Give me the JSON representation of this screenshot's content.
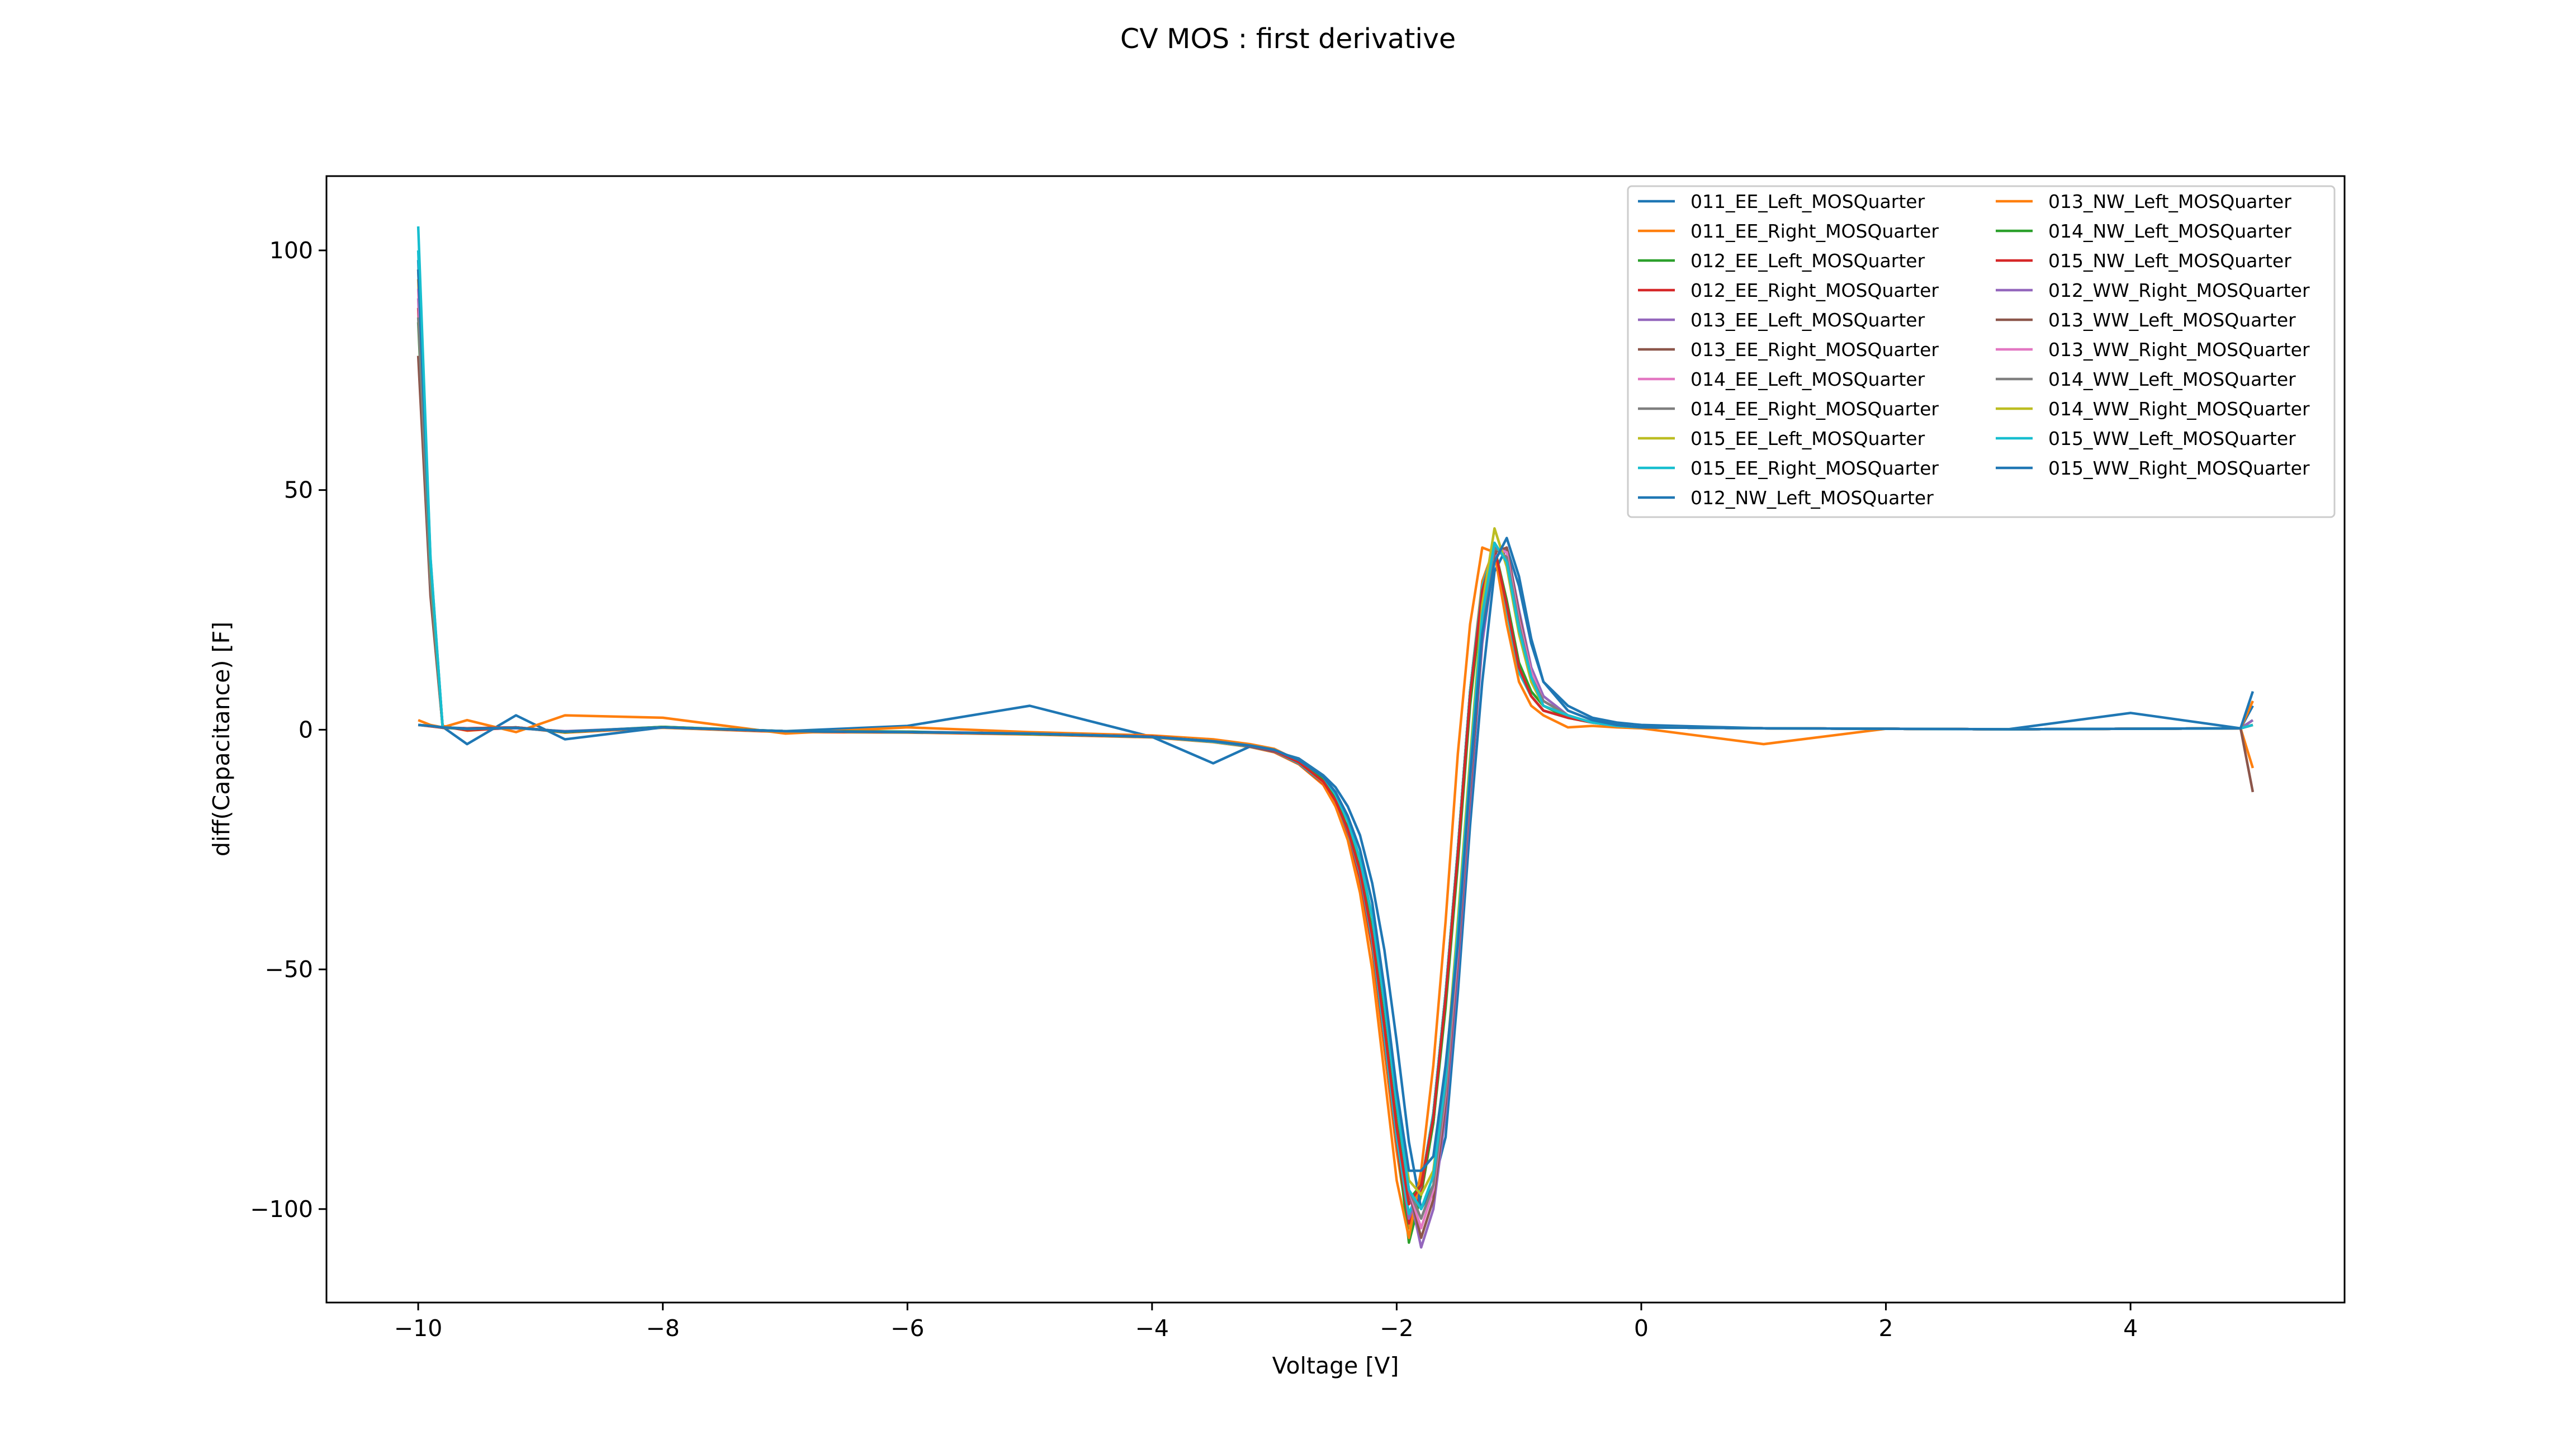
{
  "chart_data": {
    "type": "line",
    "title": "CV MOS : first derivative",
    "xlabel": "Voltage [V]",
    "ylabel": "diff(Capacitance) [F]",
    "xlim": [
      -10.75,
      5.75
    ],
    "ylim": [
      -119.5,
      115.5
    ],
    "xticks": [
      -10,
      -8,
      -6,
      -4,
      -2,
      0,
      2,
      4
    ],
    "xtick_labels": [
      "−10",
      "−8",
      "−6",
      "−4",
      "−2",
      "0",
      "2",
      "4"
    ],
    "yticks": [
      100,
      50,
      0,
      -50,
      -100
    ],
    "ytick_labels": [
      "100",
      "50",
      "0",
      "−50",
      "−100"
    ],
    "grid": false,
    "legend_position": "top-right",
    "legend_columns": 2,
    "colors": [
      "#1f77b4",
      "#ff7f0e",
      "#2ca02c",
      "#d62728",
      "#9467bd",
      "#8c564b",
      "#e377c2",
      "#7f7f7f",
      "#bcbd22",
      "#17becf"
    ],
    "x": [
      -10.0,
      -9.9,
      -9.8,
      -9.6,
      -9.2,
      -8.8,
      -8.0,
      -7.0,
      -6.0,
      -5.0,
      -4.0,
      -3.5,
      -3.2,
      -3.0,
      -2.8,
      -2.6,
      -2.5,
      -2.4,
      -2.3,
      -2.2,
      -2.1,
      -2.0,
      -1.9,
      -1.8,
      -1.7,
      -1.6,
      -1.5,
      -1.4,
      -1.3,
      -1.2,
      -1.1,
      -1.0,
      -0.9,
      -0.8,
      -0.6,
      -0.4,
      -0.2,
      0.0,
      1.0,
      2.0,
      3.0,
      4.0,
      4.9,
      5.0
    ],
    "series": [
      {
        "name": "011_EE_Left_MOSQuarter",
        "values": [
          98,
          35,
          0.5,
          0.3,
          0.5,
          -0.4,
          0.6,
          -0.3,
          -0.5,
          -0.8,
          -1.5,
          -2.5,
          -3.5,
          -4.5,
          -7,
          -11,
          -15,
          -21,
          -30,
          -44,
          -64,
          -85,
          -101,
          -95,
          -80,
          -55,
          -25,
          8,
          30,
          38,
          25,
          12,
          7,
          4,
          2.5,
          1.5,
          0.8,
          0.5,
          0.3,
          0.2,
          0.1,
          0.2,
          0.3,
          1
        ]
      },
      {
        "name": "011_EE_Right_MOSQuarter",
        "values": [
          94,
          32,
          0.8,
          -0.2,
          0.5,
          -0.6,
          0.4,
          -0.5,
          -0.6,
          -1.0,
          -1.6,
          -2.6,
          -3.6,
          -4.7,
          -7.2,
          -11.5,
          -16,
          -22,
          -32,
          -46,
          -67,
          -88,
          -104,
          -97,
          -82,
          -57,
          -26,
          8,
          31,
          38,
          26,
          12,
          7,
          4,
          2.5,
          1.5,
          0.8,
          0.5,
          0.3,
          0.2,
          0.1,
          0.2,
          0.3,
          -8
        ]
      },
      {
        "name": "012_EE_Left_MOSQuarter",
        "values": [
          85,
          30,
          0.4,
          0.2,
          0.4,
          -0.4,
          0.5,
          -0.3,
          -0.5,
          -0.8,
          -1.5,
          -2.5,
          -3.5,
          -4.5,
          -7,
          -11,
          -15,
          -21,
          -30,
          -44,
          -64,
          -85,
          -107,
          -97,
          -82,
          -56,
          -25,
          8,
          30,
          38,
          25,
          12,
          7,
          4,
          2.5,
          1.5,
          0.8,
          0.5,
          0.3,
          0.2,
          0.1,
          0.2,
          0.3,
          2
        ]
      },
      {
        "name": "012_EE_Right_MOSQuarter",
        "values": [
          88,
          31,
          0.6,
          -0.1,
          0.4,
          -0.5,
          0.5,
          -0.4,
          -0.5,
          -0.9,
          -1.5,
          -2.5,
          -3.5,
          -4.6,
          -7.1,
          -11.2,
          -15.5,
          -21.5,
          -31,
          -45,
          -65,
          -86,
          -103,
          -96,
          -81,
          -56,
          -25,
          8,
          30,
          38,
          25,
          12,
          7,
          4,
          2.5,
          1.5,
          0.8,
          0.5,
          0.3,
          0.2,
          0.1,
          0.2,
          0.3,
          1
        ]
      },
      {
        "name": "013_EE_Left_MOSQuarter",
        "values": [
          90,
          32,
          0.5,
          0.2,
          0.3,
          -0.3,
          0.5,
          -0.3,
          -0.4,
          -0.8,
          -1.4,
          -2.4,
          -3.4,
          -4.4,
          -6.9,
          -10.8,
          -14.8,
          -20.8,
          -29.8,
          -43.5,
          -63.5,
          -84.5,
          -102,
          -95,
          -80,
          -55,
          -25,
          8,
          30,
          38,
          25,
          12,
          7,
          4,
          2.5,
          1.5,
          0.8,
          0.5,
          0.3,
          0.2,
          0.1,
          0.2,
          0.3,
          2
        ]
      },
      {
        "name": "013_EE_Right_MOSQuarter",
        "values": [
          78,
          28,
          0.6,
          0.1,
          0.4,
          -0.4,
          0.5,
          -0.3,
          -0.5,
          -0.8,
          -1.5,
          -2.5,
          -3.5,
          -4.5,
          -7,
          -11,
          -15,
          -21,
          -30,
          -44,
          -64,
          -85,
          -101,
          -95,
          -80,
          -55,
          -25,
          8,
          30,
          38,
          25,
          12,
          7,
          4,
          2.5,
          1.5,
          0.8,
          0.5,
          0.3,
          0.2,
          0.1,
          0.2,
          0.3,
          -13
        ]
      },
      {
        "name": "014_EE_Left_MOSQuarter",
        "values": [
          92,
          33,
          0.5,
          0.2,
          0.4,
          -0.4,
          0.5,
          -0.3,
          -0.5,
          -0.8,
          -1.5,
          -2.5,
          -3.5,
          -4.5,
          -7,
          -11,
          -15,
          -21,
          -30,
          -44,
          -64,
          -85,
          -101,
          -95,
          -80,
          -55,
          -25,
          8,
          30,
          38,
          25,
          12,
          7,
          4,
          2.5,
          1.5,
          0.8,
          0.5,
          0.3,
          0.2,
          0.1,
          0.2,
          0.3,
          1
        ]
      },
      {
        "name": "014_EE_Right_MOSQuarter",
        "values": [
          86,
          31,
          0.5,
          0.2,
          0.4,
          -0.4,
          0.5,
          -0.3,
          -0.5,
          -0.8,
          -1.5,
          -2.5,
          -3.5,
          -4.5,
          -7,
          -11,
          -15,
          -21,
          -30,
          -44,
          -64,
          -85,
          -101,
          -95,
          -80,
          -55,
          -25,
          8,
          30,
          38,
          25,
          12,
          7,
          4,
          2.5,
          1.5,
          0.8,
          0.5,
          0.3,
          0.2,
          0.1,
          0.2,
          0.3,
          1
        ]
      },
      {
        "name": "015_EE_Left_MOSQuarter",
        "values": [
          96,
          34,
          0.5,
          0.2,
          0.4,
          -0.4,
          0.5,
          -0.3,
          -0.5,
          -0.8,
          -1.5,
          -2.5,
          -3.5,
          -4.5,
          -7,
          -11,
          -15,
          -21,
          -30,
          -44,
          -64,
          -85,
          -101,
          -95,
          -80,
          -55,
          -25,
          8,
          30,
          38,
          25,
          12,
          7,
          4,
          2.5,
          1.5,
          0.8,
          0.5,
          0.3,
          0.2,
          0.1,
          0.2,
          0.3,
          1
        ]
      },
      {
        "name": "015_EE_Right_MOSQuarter",
        "values": [
          100,
          36,
          0.5,
          0.2,
          0.4,
          -0.4,
          0.5,
          -0.3,
          -0.5,
          -0.8,
          -1.5,
          -2.5,
          -3.5,
          -4.5,
          -7,
          -11,
          -15,
          -21,
          -30,
          -44,
          -64,
          -85,
          -101,
          -95,
          -80,
          -55,
          -25,
          8,
          30,
          38,
          25,
          12,
          7,
          4,
          2.5,
          1.5,
          0.8,
          0.5,
          0.3,
          0.2,
          0.1,
          0.2,
          0.3,
          1
        ]
      },
      {
        "name": "012_NW_Left_MOSQuarter",
        "values": [
          96,
          35,
          0.6,
          -3,
          3,
          -2,
          0.5,
          -0.3,
          0.8,
          5,
          -1.5,
          -7,
          -3.5,
          -4.5,
          -6,
          -9.5,
          -12,
          -16,
          -22,
          -32,
          -46,
          -65,
          -86,
          -100,
          -95,
          -85,
          -55,
          -20,
          10,
          33,
          38,
          30,
          18,
          10,
          5,
          2.5,
          1.5,
          1,
          0.3,
          0.2,
          0.1,
          3.5,
          0.3,
          5
        ]
      },
      {
        "name": "013_NW_Left_MOSQuarter",
        "values": [
          2,
          1,
          0.5,
          2,
          -0.5,
          3,
          2.5,
          -0.8,
          0.5,
          -0.5,
          -1.2,
          -2,
          -3,
          -4,
          -6.5,
          -11,
          -16,
          -23,
          -34,
          -50,
          -72,
          -94,
          -106,
          -92,
          -70,
          -40,
          -5,
          22,
          38,
          37,
          22,
          10,
          5,
          3,
          0.5,
          0.8,
          0.5,
          0.3,
          -3,
          0.2,
          0.1,
          0.2,
          0.3,
          6
        ]
      },
      {
        "name": "014_NW_Left_MOSQuarter",
        "values": [
          1,
          0.8,
          0.4,
          0.2,
          0.5,
          -0.5,
          0.6,
          -0.3,
          -0.4,
          -0.9,
          -1.4,
          -2.4,
          -3.3,
          -4.2,
          -6.5,
          -10.5,
          -14.5,
          -20.5,
          -29,
          -42,
          -61,
          -82,
          -98,
          -95,
          -82,
          -58,
          -28,
          5,
          28,
          38,
          27,
          14,
          8,
          5,
          2.5,
          1.5,
          0.8,
          0.5,
          0.3,
          0.2,
          0.1,
          0.2,
          0.3,
          1
        ]
      },
      {
        "name": "015_NW_Left_MOSQuarter",
        "values": [
          1,
          0.7,
          0.4,
          0.3,
          0.5,
          -0.4,
          0.5,
          -0.3,
          -0.5,
          -0.8,
          -1.4,
          -2.4,
          -3.4,
          -4.4,
          -6.8,
          -10.8,
          -14.8,
          -20.8,
          -29.5,
          -43,
          -62,
          -83,
          -99,
          -95,
          -81,
          -56,
          -26,
          7,
          29,
          38,
          26,
          13,
          7,
          4,
          2.5,
          1.5,
          0.8,
          0.5,
          0.3,
          0.2,
          0.1,
          0.2,
          0.3,
          1
        ]
      },
      {
        "name": "012_WW_Right_MOSQuarter",
        "values": [
          1,
          0.8,
          0.5,
          0.2,
          0.4,
          -0.4,
          0.5,
          -0.3,
          -0.5,
          -0.8,
          -1.5,
          -2.4,
          -3.3,
          -4.2,
          -6.3,
          -9.8,
          -13.5,
          -19,
          -27,
          -39,
          -57,
          -78,
          -96,
          -108,
          -100,
          -80,
          -50,
          -15,
          18,
          36,
          38,
          25,
          13,
          7,
          3,
          1.5,
          0.8,
          0.5,
          0.3,
          0.2,
          0.1,
          0.2,
          0.3,
          1
        ]
      },
      {
        "name": "013_WW_Left_MOSQuarter",
        "values": [
          1,
          0.8,
          0.5,
          0.2,
          0.4,
          -0.4,
          0.5,
          -0.3,
          -0.5,
          -0.8,
          -1.5,
          -2.4,
          -3.3,
          -4.2,
          -6.3,
          -9.8,
          -13.5,
          -19,
          -27,
          -39,
          -57,
          -78,
          -96,
          -106,
          -98,
          -78,
          -48,
          -13,
          20,
          37,
          38,
          24,
          12,
          6,
          3,
          1.5,
          0.8,
          0.5,
          0.3,
          0.2,
          0.1,
          0.2,
          0.3,
          1
        ]
      },
      {
        "name": "013_WW_Right_MOSQuarter",
        "values": [
          1,
          0.8,
          0.5,
          0.2,
          0.4,
          -0.4,
          0.5,
          -0.3,
          -0.5,
          -0.8,
          -1.5,
          -2.4,
          -3.3,
          -4.2,
          -6.3,
          -9.8,
          -13.5,
          -19,
          -27,
          -39,
          -57,
          -78,
          -96,
          -104,
          -96,
          -76,
          -46,
          -11,
          22,
          38,
          37,
          23,
          12,
          6,
          3,
          1.5,
          0.8,
          0.5,
          0.3,
          0.2,
          0.1,
          0.2,
          0.3,
          1
        ]
      },
      {
        "name": "014_WW_Left_MOSQuarter",
        "values": [
          1,
          0.8,
          0.5,
          0.2,
          0.4,
          -0.4,
          0.5,
          -0.3,
          -0.5,
          -0.8,
          -1.5,
          -2.4,
          -3.3,
          -4.2,
          -6.3,
          -9.8,
          -13.5,
          -19,
          -27,
          -39,
          -57,
          -78,
          -96,
          -102,
          -95,
          -75,
          -44,
          -10,
          23,
          38,
          36,
          22,
          11,
          6,
          3,
          1.5,
          0.8,
          0.5,
          0.3,
          0.2,
          0.1,
          0.2,
          0.3,
          1
        ]
      },
      {
        "name": "014_WW_Right_MOSQuarter",
        "values": [
          1,
          0.8,
          0.5,
          0.2,
          0.4,
          -0.4,
          0.5,
          -0.3,
          -0.5,
          -0.8,
          -1.5,
          -2.4,
          -3.3,
          -4.2,
          -6.3,
          -9.8,
          -13.5,
          -19,
          -27,
          -39,
          -57,
          -78,
          -94,
          -97,
          -92,
          -72,
          -40,
          -6,
          26,
          42,
          34,
          20,
          10,
          5,
          3,
          1.5,
          0.8,
          0.5,
          0.3,
          0.2,
          0.1,
          0.2,
          0.3,
          1
        ]
      },
      {
        "name": "015_WW_Left_MOSQuarter",
        "values": [
          105,
          36,
          0.5,
          0.2,
          0.4,
          -0.4,
          0.5,
          -0.3,
          -0.5,
          -0.8,
          -1.5,
          -2.4,
          -3.3,
          -4.2,
          -6.3,
          -9.8,
          -13.5,
          -19,
          -27,
          -39,
          -57,
          -78,
          -96,
          -100,
          -93,
          -73,
          -42,
          -8,
          24,
          39,
          35,
          21,
          11,
          5,
          3,
          1.5,
          0.8,
          0.5,
          0.3,
          0.2,
          0.1,
          0.2,
          0.3,
          1
        ]
      },
      {
        "name": "015_WW_Right_MOSQuarter",
        "values": [
          1,
          0.8,
          0.5,
          0.2,
          0.4,
          -0.4,
          0.5,
          -0.3,
          -0.5,
          -0.8,
          -1.5,
          -2.4,
          -3.3,
          -4.2,
          -6.3,
          -9.8,
          -13,
          -18,
          -25,
          -36,
          -54,
          -75,
          -92,
          -92,
          -89,
          -70,
          -45,
          -10,
          20,
          35,
          40,
          32,
          19,
          10,
          4,
          2,
          1,
          0.5,
          0.3,
          0.2,
          0.1,
          0.2,
          0.3,
          8
        ]
      }
    ]
  }
}
